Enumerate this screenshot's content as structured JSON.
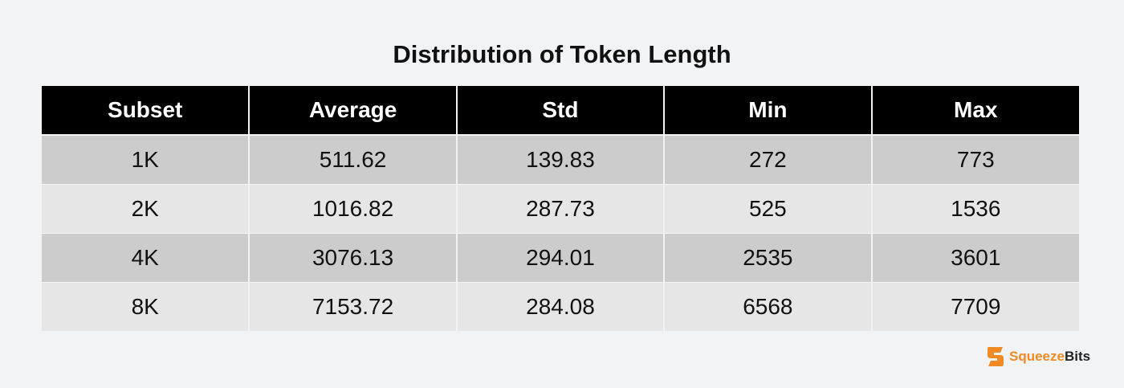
{
  "title": "Distribution of Token Length",
  "table": {
    "header": [
      "Subset",
      "Average",
      "Std",
      "Min",
      "Max"
    ],
    "rows": [
      [
        "1K",
        "511.62",
        "139.83",
        "272",
        "773"
      ],
      [
        "2K",
        "1016.82",
        "287.73",
        "525",
        "1536"
      ],
      [
        "4K",
        "3076.13",
        "294.01",
        "2535",
        "3601"
      ],
      [
        "8K",
        "7153.72",
        "284.08",
        "6568",
        "7709"
      ]
    ]
  },
  "logo": {
    "first": "Squeeze",
    "second": "Bits"
  }
}
